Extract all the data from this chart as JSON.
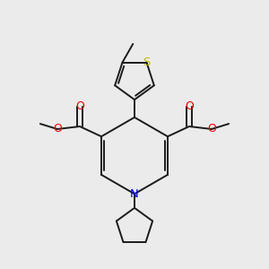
{
  "bg_color": "#ebebeb",
  "bond_color": "#1a1a1a",
  "N_color": "#0000ee",
  "O_color": "#ee0000",
  "S_color": "#bbbb00",
  "lw": 1.4,
  "figsize": [
    3.0,
    3.0
  ],
  "dpi": 100,
  "xlim": [
    0.0,
    1.0
  ],
  "ylim": [
    0.0,
    1.0
  ]
}
